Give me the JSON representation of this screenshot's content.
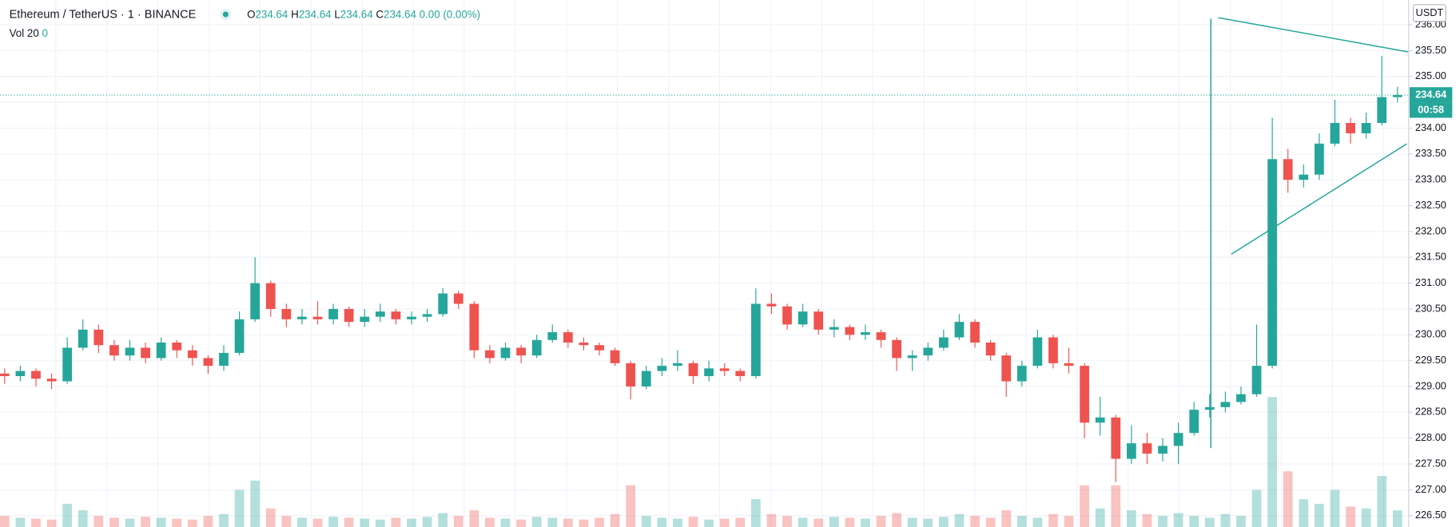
{
  "header": {
    "symbol": "Ethereum / TetherUS · 1 · BINANCE",
    "ohlc": [
      {
        "label": "O",
        "value": "234.64"
      },
      {
        "label": "H",
        "value": "234.64"
      },
      {
        "label": "L",
        "value": "234.64"
      },
      {
        "label": "C",
        "value": "234.64"
      }
    ],
    "change": "0.00 (0.00%)",
    "volume_label": "Vol 20",
    "volume_value": "0"
  },
  "chart_data": {
    "type": "candlestick",
    "y_unit": "USDT",
    "last_price": 234.64,
    "countdown": "00:58",
    "up_color": "#26a69a",
    "down_color": "#ef5350",
    "grid": true,
    "ylim": [
      226.28,
      236.48
    ],
    "yticks": [
      {
        "value": 226.5,
        "label": "226.50"
      },
      {
        "value": 227,
        "label": "227.00"
      },
      {
        "value": 227.5,
        "label": "227.50"
      },
      {
        "value": 228,
        "label": "228.00"
      },
      {
        "value": 228.5,
        "label": "228.50"
      },
      {
        "value": 229,
        "label": "229.00"
      },
      {
        "value": 229.5,
        "label": "229.50"
      },
      {
        "value": 230,
        "label": "230.00"
      },
      {
        "value": 230.5,
        "label": "230.50"
      },
      {
        "value": 231,
        "label": "231.00"
      },
      {
        "value": 231.5,
        "label": "231.50"
      },
      {
        "value": 232,
        "label": "232.00"
      },
      {
        "value": 232.5,
        "label": "232.50"
      },
      {
        "value": 233,
        "label": "233.00"
      },
      {
        "value": 233.5,
        "label": "233.50"
      },
      {
        "value": 234,
        "label": "234.00"
      },
      {
        "value": 234.5,
        "label": "234.50"
      },
      {
        "value": 235,
        "label": "235.00"
      },
      {
        "value": 235.5,
        "label": "235.50"
      },
      {
        "value": 236,
        "label": "236.00"
      }
    ],
    "open": [
      229.25,
      229.2,
      229.3,
      229.15,
      229.1,
      229.75,
      230.1,
      229.8,
      229.6,
      229.75,
      229.55,
      229.85,
      229.7,
      229.55,
      229.4,
      229.65,
      230.3,
      231.0,
      230.5,
      230.3,
      230.35,
      230.3,
      230.5,
      230.25,
      230.35,
      230.45,
      230.3,
      230.35,
      230.4,
      230.8,
      230.6,
      229.7,
      229.55,
      229.75,
      229.6,
      229.9,
      230.05,
      229.85,
      229.8,
      229.7,
      229.45,
      229.0,
      229.3,
      229.4,
      229.45,
      229.2,
      229.35,
      229.3,
      229.2,
      230.6,
      230.55,
      230.2,
      230.45,
      230.1,
      230.15,
      230.0,
      230.05,
      229.9,
      229.55,
      229.6,
      229.75,
      229.95,
      230.25,
      229.85,
      229.6,
      229.1,
      229.4,
      229.95,
      229.45,
      229.4,
      228.3,
      228.4,
      227.6,
      227.9,
      227.7,
      227.85,
      228.1,
      228.55,
      228.6,
      228.7,
      228.85,
      229.4,
      233.4,
      233.0,
      233.1,
      233.7,
      234.1,
      233.9,
      234.1,
      234.6
    ],
    "high": [
      229.35,
      229.4,
      229.35,
      229.25,
      229.95,
      230.3,
      230.2,
      229.9,
      229.9,
      229.85,
      229.95,
      229.9,
      229.8,
      229.6,
      229.8,
      230.45,
      231.5,
      231.05,
      230.6,
      230.5,
      230.65,
      230.6,
      230.55,
      230.5,
      230.6,
      230.5,
      230.45,
      230.5,
      230.9,
      230.85,
      230.65,
      229.8,
      229.85,
      229.8,
      230.0,
      230.2,
      230.1,
      229.95,
      229.85,
      229.75,
      229.5,
      229.4,
      229.55,
      229.7,
      229.5,
      229.5,
      229.45,
      229.35,
      230.9,
      230.8,
      230.6,
      230.6,
      230.5,
      230.3,
      230.2,
      230.2,
      230.1,
      229.95,
      229.7,
      229.85,
      230.1,
      230.4,
      230.3,
      229.9,
      229.65,
      229.5,
      230.1,
      230.0,
      229.75,
      229.45,
      228.8,
      228.45,
      228.25,
      228.1,
      228.0,
      228.3,
      228.7,
      228.85,
      228.9,
      229.0,
      230.2,
      234.2,
      233.6,
      233.3,
      233.9,
      234.55,
      234.2,
      234.3,
      235.4,
      234.8
    ],
    "low": [
      229.05,
      229.1,
      229.0,
      228.95,
      229.05,
      229.7,
      229.65,
      229.5,
      229.5,
      229.45,
      229.5,
      229.55,
      229.4,
      229.25,
      229.3,
      229.6,
      230.25,
      230.35,
      230.15,
      230.2,
      230.2,
      230.2,
      230.15,
      230.15,
      230.25,
      230.2,
      230.2,
      230.25,
      230.35,
      230.5,
      229.55,
      229.45,
      229.5,
      229.45,
      229.55,
      229.85,
      229.75,
      229.7,
      229.6,
      229.4,
      228.75,
      228.95,
      229.2,
      229.3,
      229.05,
      229.1,
      229.2,
      229.1,
      229.15,
      230.4,
      230.1,
      230.15,
      230.0,
      229.95,
      229.9,
      229.9,
      229.75,
      229.3,
      229.3,
      229.5,
      229.7,
      229.9,
      229.75,
      229.5,
      228.8,
      229.0,
      229.35,
      229.35,
      229.25,
      228.0,
      228.05,
      227.15,
      227.5,
      227.5,
      227.55,
      227.5,
      228.05,
      228.4,
      228.5,
      228.65,
      228.8,
      229.35,
      232.75,
      232.85,
      233.0,
      233.65,
      233.7,
      233.8,
      234.05,
      234.5
    ],
    "close": [
      229.2,
      229.3,
      229.15,
      229.1,
      229.75,
      230.1,
      229.8,
      229.6,
      229.75,
      229.55,
      229.85,
      229.7,
      229.55,
      229.4,
      229.65,
      230.3,
      231.0,
      230.5,
      230.3,
      230.35,
      230.3,
      230.5,
      230.25,
      230.35,
      230.45,
      230.3,
      230.35,
      230.4,
      230.8,
      230.6,
      229.7,
      229.55,
      229.75,
      229.6,
      229.9,
      230.05,
      229.85,
      229.8,
      229.7,
      229.45,
      229.0,
      229.3,
      229.4,
      229.45,
      229.2,
      229.35,
      229.3,
      229.2,
      230.6,
      230.55,
      230.2,
      230.45,
      230.1,
      230.15,
      230.0,
      230.05,
      229.9,
      229.55,
      229.6,
      229.75,
      229.95,
      230.25,
      229.85,
      229.6,
      229.1,
      229.4,
      229.95,
      229.45,
      229.4,
      228.3,
      228.4,
      227.6,
      227.9,
      227.7,
      227.85,
      228.1,
      228.55,
      228.6,
      228.7,
      228.85,
      229.4,
      233.4,
      233.0,
      233.1,
      233.7,
      234.1,
      233.9,
      234.1,
      234.6,
      234.64
    ],
    "volume": [
      12,
      10,
      9,
      8,
      25,
      18,
      12,
      10,
      9,
      11,
      10,
      9,
      8,
      12,
      14,
      40,
      50,
      20,
      12,
      10,
      9,
      11,
      10,
      9,
      8,
      10,
      9,
      11,
      15,
      12,
      18,
      10,
      9,
      8,
      11,
      10,
      9,
      8,
      10,
      14,
      45,
      12,
      10,
      9,
      11,
      8,
      9,
      10,
      30,
      14,
      12,
      10,
      9,
      11,
      10,
      9,
      12,
      15,
      10,
      9,
      11,
      14,
      12,
      10,
      18,
      12,
      10,
      14,
      12,
      45,
      20,
      45,
      18,
      14,
      12,
      15,
      12,
      10,
      14,
      12,
      40,
      140,
      60,
      30,
      25,
      40,
      22,
      20,
      55,
      18
    ]
  }
}
